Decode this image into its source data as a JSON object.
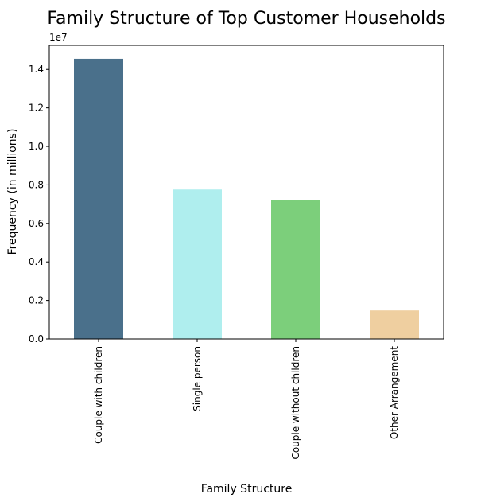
{
  "chart_data": {
    "type": "bar",
    "title": "Family Structure of Top Customer Households",
    "xlabel": "Family Structure",
    "ylabel": "Frequency (in millions)",
    "y_offset_label": "1e7",
    "categories": [
      "Couple with children",
      "Single person",
      "Couple without children",
      "Other Arrangement"
    ],
    "values": [
      14550000,
      7760000,
      7230000,
      1480000
    ],
    "colors": [
      "#4a708b",
      "#afeeee",
      "#7ccf7b",
      "#efcfa0"
    ],
    "ylim": [
      0,
      15250000
    ],
    "yticks": [
      0,
      2000000,
      4000000,
      6000000,
      8000000,
      10000000,
      12000000,
      14000000
    ],
    "ytick_labels": [
      "0.0",
      "0.2",
      "0.4",
      "0.6",
      "0.8",
      "1.0",
      "1.2",
      "1.4"
    ],
    "grid": false,
    "legend": "none"
  }
}
